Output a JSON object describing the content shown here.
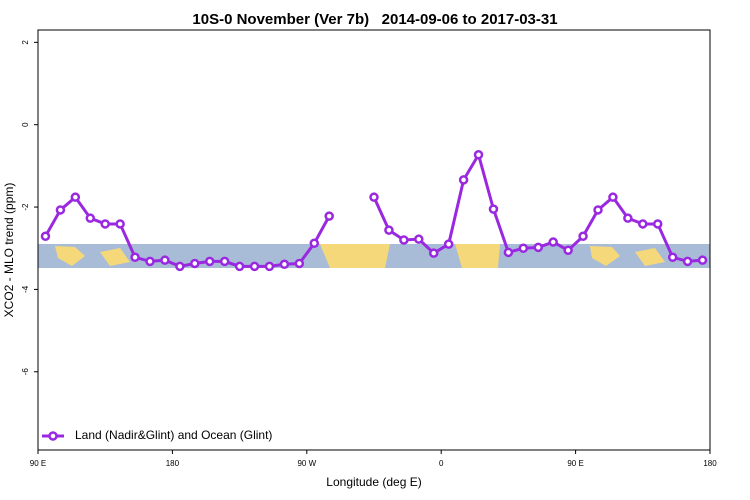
{
  "chart_data": {
    "type": "line",
    "title": "10S-0 November (Ver 7b)   2014-09-06 to 2017-03-31",
    "x_label": "Longitude (deg E)",
    "y_label": "XCO2 - MLO trend (ppm)",
    "x": [
      95,
      105,
      115,
      125,
      135,
      145,
      155,
      165,
      175,
      185,
      195,
      205,
      215,
      225,
      235,
      245,
      255,
      265,
      275,
      285,
      295,
      305,
      315,
      325,
      335,
      345,
      355,
      365,
      375,
      385,
      395,
      405,
      415,
      425,
      435,
      445,
      455,
      465,
      475,
      485,
      495,
      505,
      515,
      525,
      535
    ],
    "series": [
      {
        "name": "Land (Nadir&Glint) and Ocean (Glint)",
        "color": "#9a28e0",
        "values": [
          -2.71,
          -2.07,
          -1.76,
          -2.27,
          -2.41,
          -2.41,
          -3.22,
          -3.32,
          -3.29,
          -3.44,
          -3.37,
          -3.32,
          -3.32,
          -3.44,
          -3.44,
          -3.44,
          -3.39,
          -3.37,
          -2.88,
          -2.22,
          null,
          null,
          -1.76,
          -2.56,
          -2.8,
          -2.78,
          -3.12,
          -2.9,
          -1.34,
          -0.73,
          -2.05,
          -3.1,
          -3.0,
          -2.98,
          -2.85,
          -3.05,
          -2.71,
          -2.07,
          -1.76,
          -2.27,
          -2.41,
          -2.41,
          -3.22,
          -3.32,
          -3.29
        ]
      }
    ],
    "xlim": [
      90,
      540
    ],
    "xticks": [
      {
        "value": 90,
        "label": "90 E"
      },
      {
        "value": 180,
        "label": "180"
      },
      {
        "value": 270,
        "label": "90 W"
      },
      {
        "value": 360,
        "label": "0"
      },
      {
        "value": 450,
        "label": "90 E"
      },
      {
        "value": 540,
        "label": "180"
      }
    ],
    "ylim": [
      -7.9,
      2.3
    ],
    "yticks": [
      -6,
      -4,
      -2,
      0,
      2
    ],
    "legend": "bottomleft"
  }
}
